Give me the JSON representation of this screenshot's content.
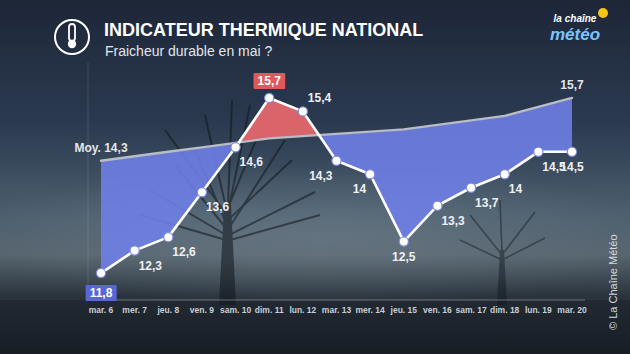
{
  "chart_data": {
    "type": "line",
    "title": "INDICATEUR THERMIQUE NATIONAL",
    "subtitle": "Fraicheur durable en mai ?",
    "annotations": [
      "la chaîne",
      "météo",
      "© La Chaîne Météo"
    ],
    "categories": [
      "mar. 6",
      "mer. 7",
      "jeu. 8",
      "ven. 9",
      "sam. 10",
      "dim. 11",
      "lun. 12",
      "mar. 13",
      "mer. 14",
      "jeu. 15",
      "ven. 16",
      "sam. 17",
      "dim. 18",
      "lun. 19",
      "mar. 20"
    ],
    "series": [
      {
        "color": "#ffffff",
        "marker": "circle",
        "values": [
          11.8,
          12.3,
          12.6,
          13.6,
          14.6,
          15.7,
          15.4,
          14.3,
          14,
          12.5,
          13.3,
          13.7,
          14,
          14.5,
          14.5
        ],
        "value_labels": [
          "11,8",
          "12,3",
          "12,6",
          "13,6",
          "14,6",
          "15,7",
          "15,4",
          "14,3",
          "14",
          "12,5",
          "13,3",
          "13,7",
          "14",
          "14,5",
          "14,5"
        ]
      },
      {
        "color": "#b8bcc4",
        "marker": "none",
        "values": [
          14.3,
          14.4,
          14.5,
          14.6,
          14.7,
          14.8,
          14.85,
          14.9,
          14.95,
          15.0,
          15.1,
          15.2,
          15.3,
          15.5,
          15.7
        ],
        "value_labels": [
          "Moy. 14,3",
          null,
          null,
          null,
          null,
          null,
          null,
          null,
          null,
          null,
          null,
          null,
          null,
          null,
          "15,7"
        ]
      }
    ],
    "ylim": [
      11.2,
      16.5
    ],
    "grid": false,
    "tick_labels": "x",
    "data_labels": true
  }
}
